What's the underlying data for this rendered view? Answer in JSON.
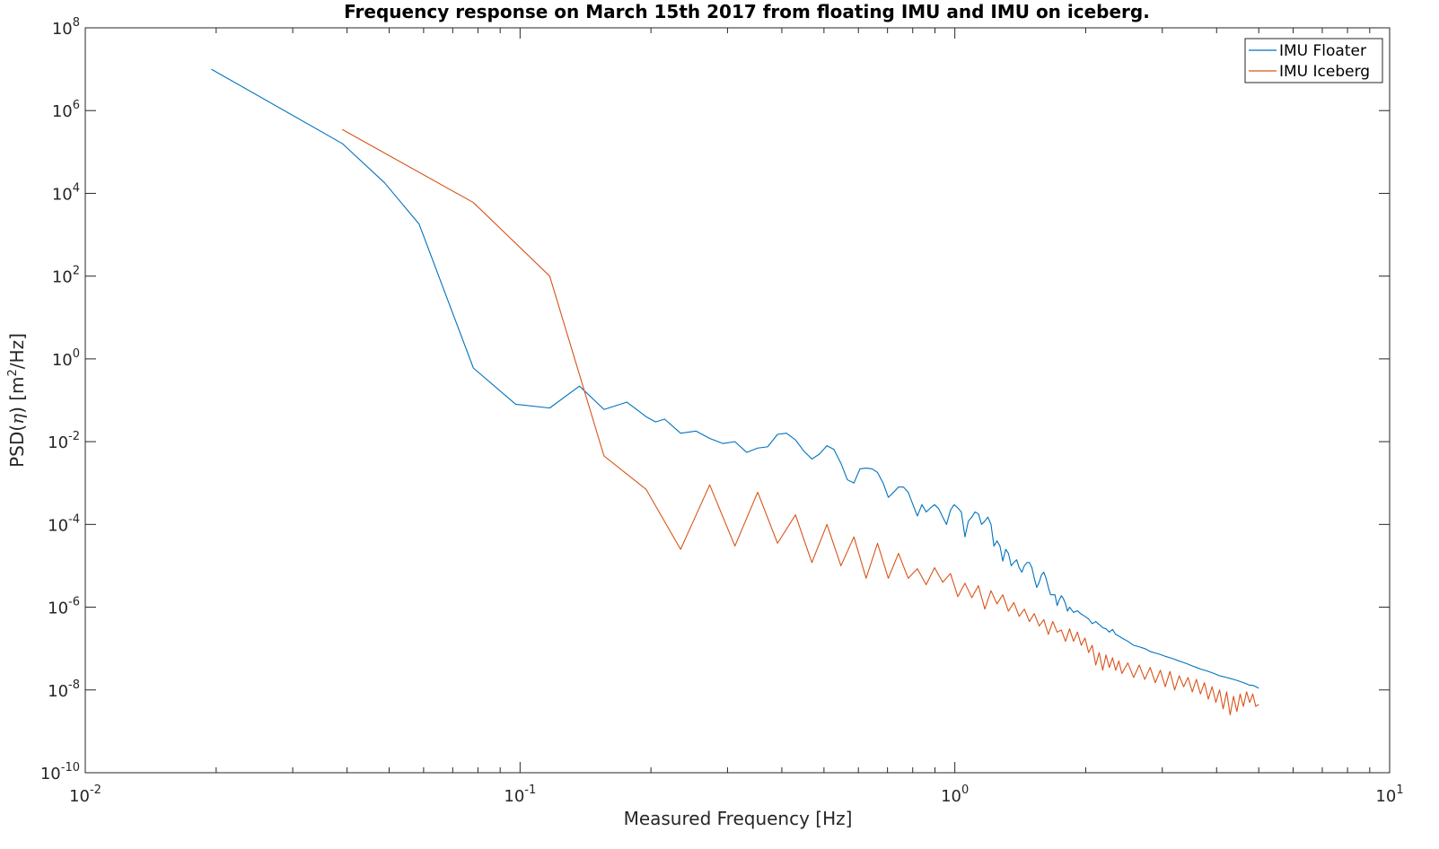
{
  "chart_data": {
    "type": "line",
    "title": "Frequency response on March 15th 2017 from floating IMU and IMU on iceberg.",
    "xlabel": "Measured Frequency [Hz]",
    "ylabel": "PSD(η) [m²/Hz]",
    "ylabel_parts": {
      "pre": "PSD(",
      "eta": "η",
      "mid": ") [m",
      "sup": "2",
      "post": "/Hz]"
    },
    "xscale": "log",
    "yscale": "log",
    "xlim": [
      0.01,
      10
    ],
    "ylim": [
      1e-10,
      100000000.0
    ],
    "x_ticks": [
      {
        "value": 0.01,
        "base": "10",
        "exp": "-2"
      },
      {
        "value": 0.1,
        "base": "10",
        "exp": "-1"
      },
      {
        "value": 1,
        "base": "10",
        "exp": "0"
      },
      {
        "value": 10,
        "base": "10",
        "exp": "1"
      }
    ],
    "y_ticks": [
      {
        "value": 1e-10,
        "base": "10",
        "exp": "-10"
      },
      {
        "value": 1e-08,
        "base": "10",
        "exp": "-8"
      },
      {
        "value": 1e-06,
        "base": "10",
        "exp": "-6"
      },
      {
        "value": 0.0001,
        "base": "10",
        "exp": "-4"
      },
      {
        "value": 0.01,
        "base": "10",
        "exp": "-2"
      },
      {
        "value": 1,
        "base": "10",
        "exp": "0"
      },
      {
        "value": 100,
        "base": "10",
        "exp": "2"
      },
      {
        "value": 10000.0,
        "base": "10",
        "exp": "4"
      },
      {
        "value": 1000000.0,
        "base": "10",
        "exp": "6"
      },
      {
        "value": 100000000.0,
        "base": "10",
        "exp": "8"
      }
    ],
    "grid": false,
    "legend_position": "top-right",
    "series": [
      {
        "name": "IMU Floater",
        "color": "#0072BD",
        "x": [
          0.0195,
          0.039,
          0.0488,
          0.0586,
          0.0781,
          0.0977,
          0.117,
          0.137,
          0.156,
          0.176,
          0.195,
          0.205,
          0.215,
          0.234,
          0.254,
          0.273,
          0.293,
          0.312,
          0.332,
          0.352,
          0.371,
          0.391,
          0.41,
          0.43,
          0.449,
          0.469,
          0.488,
          0.508,
          0.527,
          0.547,
          0.566,
          0.586,
          0.605,
          0.625,
          0.645,
          0.664,
          0.684,
          0.703,
          0.723,
          0.742,
          0.762,
          0.781,
          0.801,
          0.82,
          0.84,
          0.859,
          0.879,
          0.898,
          0.918,
          0.938,
          0.957,
          0.977,
          0.996,
          1.016,
          1.035,
          1.055,
          1.074,
          1.094,
          1.113,
          1.133,
          1.152,
          1.172,
          1.191,
          1.211,
          1.23,
          1.25,
          1.27,
          1.289,
          1.309,
          1.328,
          1.348,
          1.367,
          1.387,
          1.406,
          1.426,
          1.445,
          1.465,
          1.484,
          1.504,
          1.523,
          1.543,
          1.563,
          1.582,
          1.602,
          1.621,
          1.641,
          1.66,
          1.68,
          1.699,
          1.719,
          1.738,
          1.758,
          1.777,
          1.797,
          1.816,
          1.836,
          1.875,
          1.914,
          1.953,
          1.992,
          2.031,
          2.07,
          2.109,
          2.148,
          2.188,
          2.227,
          2.266,
          2.305,
          2.344,
          2.383,
          2.422,
          2.5,
          2.578,
          2.656,
          2.734,
          2.813,
          2.891,
          2.969,
          3.047,
          3.125,
          3.203,
          3.281,
          3.359,
          3.438,
          3.516,
          3.594,
          3.672,
          3.75,
          3.828,
          3.906,
          3.984,
          4.063,
          4.141,
          4.219,
          4.297,
          4.375,
          4.453,
          4.531,
          4.609,
          4.688,
          4.766,
          4.844,
          4.922,
          5.0
        ],
        "y": [
          10000000.0,
          160000.0,
          18000.0,
          1800.0,
          0.6,
          0.08,
          0.065,
          0.22,
          0.06,
          0.09,
          0.04,
          0.03,
          0.035,
          0.016,
          0.018,
          0.012,
          0.009,
          0.01,
          0.0055,
          0.007,
          0.0075,
          0.015,
          0.016,
          0.011,
          0.006,
          0.0038,
          0.005,
          0.008,
          0.0065,
          0.003,
          0.0012,
          0.001,
          0.0022,
          0.0023,
          0.0022,
          0.0018,
          0.001,
          0.00045,
          0.0006,
          0.0008,
          0.0008,
          0.0006,
          0.0003,
          0.00016,
          0.0003,
          0.0002,
          0.00025,
          0.0003,
          0.00024,
          0.00015,
          0.0001,
          0.00022,
          0.0003,
          0.00025,
          0.0002,
          5e-05,
          0.00012,
          0.00015,
          0.0002,
          0.00018,
          0.0001,
          0.00012,
          0.00015,
          0.0001,
          3e-05,
          4e-05,
          3e-05,
          1.3e-05,
          2.5e-05,
          2e-05,
          1e-05,
          1.2e-05,
          1.4e-05,
          9e-06,
          7e-06,
          1e-05,
          1.2e-05,
          1.2e-05,
          9e-06,
          5e-06,
          3e-06,
          4e-06,
          6e-06,
          7e-06,
          5e-06,
          3e-06,
          2e-06,
          2e-06,
          2e-06,
          1.1e-06,
          1.5e-06,
          1.9e-06,
          1.6e-06,
          1.2e-06,
          8e-07,
          1e-06,
          7.5e-07,
          8.2e-07,
          6.8e-07,
          6e-07,
          5.2e-07,
          4e-07,
          4.5e-07,
          3.8e-07,
          3.2e-07,
          3e-07,
          2.5e-07,
          2.9e-07,
          2.2e-07,
          2e-07,
          1.8e-07,
          1.5e-07,
          1.2e-07,
          1.1e-07,
          1e-07,
          8.5e-08,
          7.8e-08,
          7.2e-08,
          6.5e-08,
          6e-08,
          5.5e-08,
          5e-08,
          4.6e-08,
          4.2e-08,
          3.8e-08,
          3.5e-08,
          3.2e-08,
          3e-08,
          2.8e-08,
          2.6e-08,
          2.4e-08,
          2.2e-08,
          2.1e-08,
          2e-08,
          1.9e-08,
          1.8e-08,
          1.7e-08,
          1.6e-08,
          1.5e-08,
          1.4e-08,
          1.3e-08,
          1.3e-08,
          1.2e-08,
          1.1e-08
        ]
      },
      {
        "name": "IMU Iceberg",
        "color": "#D95319",
        "x": [
          0.039,
          0.0781,
          0.117,
          0.156,
          0.195,
          0.234,
          0.273,
          0.312,
          0.352,
          0.391,
          0.43,
          0.469,
          0.508,
          0.547,
          0.586,
          0.625,
          0.664,
          0.703,
          0.742,
          0.781,
          0.82,
          0.859,
          0.898,
          0.938,
          0.977,
          1.016,
          1.055,
          1.094,
          1.133,
          1.172,
          1.211,
          1.25,
          1.289,
          1.328,
          1.367,
          1.406,
          1.445,
          1.484,
          1.523,
          1.563,
          1.602,
          1.641,
          1.68,
          1.719,
          1.758,
          1.797,
          1.836,
          1.875,
          1.914,
          1.953,
          1.992,
          2.031,
          2.07,
          2.109,
          2.148,
          2.188,
          2.227,
          2.266,
          2.305,
          2.344,
          2.383,
          2.422,
          2.5,
          2.578,
          2.656,
          2.734,
          2.813,
          2.891,
          2.969,
          3.047,
          3.125,
          3.203,
          3.281,
          3.359,
          3.438,
          3.516,
          3.594,
          3.672,
          3.75,
          3.828,
          3.906,
          3.984,
          4.063,
          4.141,
          4.219,
          4.297,
          4.375,
          4.453,
          4.531,
          4.609,
          4.688,
          4.766,
          4.844,
          4.922,
          5.0
        ],
        "y": [
          350000.0,
          6000.0,
          100.0,
          0.0045,
          0.0007,
          2.5e-05,
          0.0009,
          3e-05,
          0.0006,
          3.5e-05,
          0.00017,
          1.2e-05,
          0.0001,
          1e-05,
          5e-05,
          5e-06,
          3.5e-05,
          5e-06,
          2e-05,
          5e-06,
          8.5e-06,
          3.5e-06,
          9e-06,
          4e-06,
          6.5e-06,
          1.8e-06,
          3.8e-06,
          1.7e-06,
          3.3e-06,
          9e-07,
          2.5e-06,
          1.2e-06,
          2e-06,
          8e-07,
          1.3e-06,
          6e-07,
          9e-07,
          4.5e-07,
          7e-07,
          3.5e-07,
          5e-07,
          2.2e-07,
          4.5e-07,
          2.5e-07,
          2.8e-07,
          1.5e-07,
          3e-07,
          1.5e-07,
          2.5e-07,
          1.2e-07,
          1.8e-07,
          8e-08,
          1.2e-07,
          4e-08,
          8e-08,
          3e-08,
          7e-08,
          3.5e-08,
          6e-08,
          3e-08,
          5e-08,
          2.5e-08,
          4.5e-08,
          2e-08,
          4e-08,
          1.8e-08,
          3.5e-08,
          1.5e-08,
          3e-08,
          1.2e-08,
          2.8e-08,
          1e-08,
          2.2e-08,
          1.2e-08,
          2e-08,
          9e-09,
          1.8e-08,
          8e-09,
          1.5e-08,
          6e-09,
          1.2e-08,
          5e-09,
          1e-08,
          3.5e-09,
          9e-09,
          2.5e-09,
          7e-09,
          3e-09,
          8e-09,
          4e-09,
          9e-09,
          5e-09,
          8e-09,
          4e-09,
          4.5e-09
        ]
      }
    ]
  }
}
